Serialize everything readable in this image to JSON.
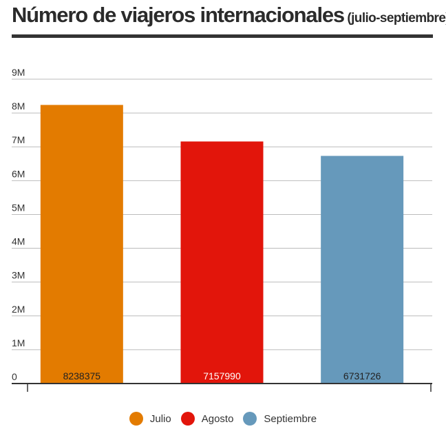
{
  "header": {
    "title": "Número de viajeros internacionales",
    "subtitle": "(julio-septiembre)"
  },
  "chart_data": {
    "type": "bar",
    "categories": [
      "Julio",
      "Agosto",
      "Septiembre"
    ],
    "values": [
      8238375,
      7157990,
      6731726
    ],
    "value_labels": [
      "8238375",
      "7157990",
      "6731726"
    ],
    "colors": [
      "#E37B00",
      "#E2150B",
      "#6699BB"
    ],
    "ylim": [
      0,
      9000000
    ],
    "yticks": [
      0,
      1000000,
      2000000,
      3000000,
      4000000,
      5000000,
      6000000,
      7000000,
      8000000,
      9000000
    ],
    "ytick_labels": [
      "0",
      "1M",
      "2M",
      "3M",
      "4M",
      "5M",
      "6M",
      "7M",
      "8M",
      "9M"
    ],
    "grid": true,
    "legend": "bottom",
    "xlabel": "",
    "ylabel": ""
  }
}
